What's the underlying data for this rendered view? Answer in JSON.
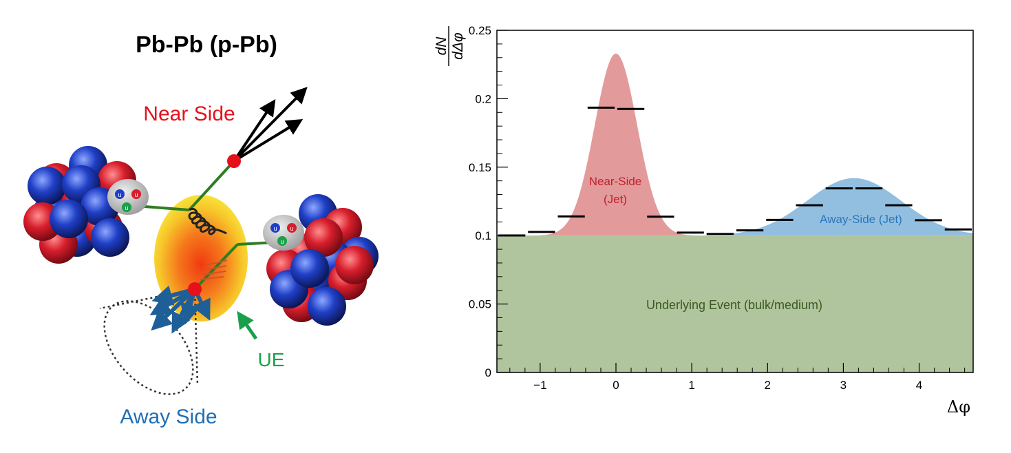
{
  "diagram": {
    "title": "Pb-Pb (p-Pb)",
    "near_side_label": "Near Side",
    "away_side_label": "Away Side",
    "ue_label": "UE",
    "quark_label": "u",
    "colors": {
      "near": "#e5101a",
      "away": "#1f6fb5",
      "ue": "#1aa04a",
      "proton": "#d81e2c",
      "neutron": "#1f3fc7",
      "gluon_line": "#2f7d22",
      "medium_outer": "#f7d22a",
      "medium_inner": "#f25b1a"
    }
  },
  "chart_data": {
    "type": "area",
    "ylabel": "dN/dΔφ",
    "ylabel_num": "dN",
    "ylabel_den": "dΔφ",
    "xlabel": "Δφ",
    "xlim": [
      -1.5708,
      4.7124
    ],
    "ylim": [
      0,
      0.25
    ],
    "x_ticks": [
      "−1",
      "0",
      "1",
      "2",
      "3",
      "4"
    ],
    "x_tick_values": [
      -1,
      0,
      1,
      2,
      3,
      4
    ],
    "y_ticks": [
      "0",
      "0.05",
      "0.1",
      "0.15",
      "0.2",
      "0.25"
    ],
    "y_tick_values": [
      0,
      0.05,
      0.1,
      0.15,
      0.2,
      0.25
    ],
    "grid": false,
    "baseline": 0.1,
    "near_peak": {
      "center": 0,
      "height": 0.133,
      "sigma": 0.28
    },
    "away_peak": {
      "center": 3.1416,
      "height": 0.042,
      "sigma": 0.62
    },
    "annotations": {
      "ue": "Underlying Event (bulk/medium)",
      "near_line1": "Near-Side",
      "near_line2": "(Jet)",
      "away": "Away-Side (Jet)"
    },
    "colors": {
      "ue": "#b0c49e",
      "near": "#e29a9b",
      "away": "#92bfe0",
      "near_text": "#c0202a",
      "away_text": "#2a77bd",
      "ue_text": "#3a5a1e"
    },
    "bins": {
      "width": 0.3927,
      "centers": [
        -1.374,
        -0.982,
        -0.589,
        -0.196,
        0.196,
        0.589,
        0.982,
        1.374,
        1.767,
        2.16,
        2.553,
        2.945,
        3.338,
        3.731,
        4.123,
        4.516
      ],
      "values": [
        0.1001,
        0.1027,
        0.114,
        0.1935,
        0.1925,
        0.1138,
        0.1022,
        0.1012,
        0.1038,
        0.1115,
        0.1222,
        0.1345,
        0.1345,
        0.1222,
        0.1112,
        0.1045
      ]
    }
  }
}
